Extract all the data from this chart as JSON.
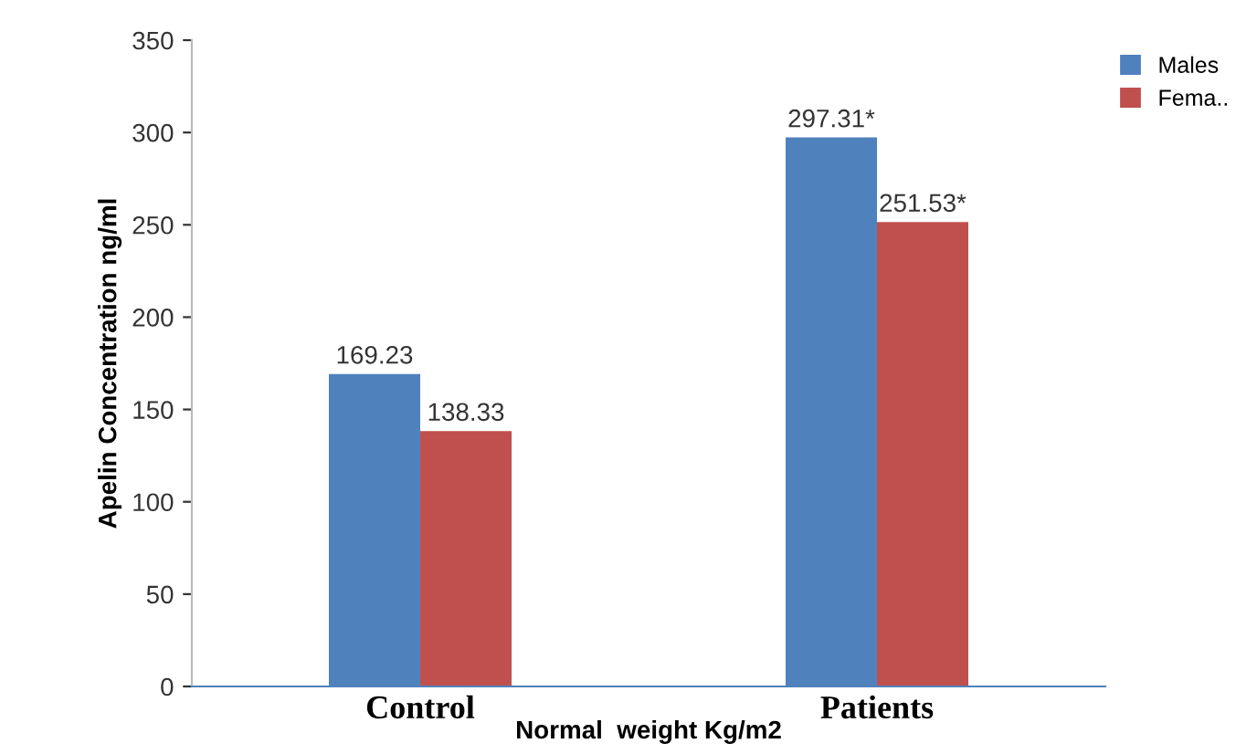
{
  "chart_data": {
    "type": "bar",
    "xlabel": "Normal  weight Kg/m2",
    "ylabel": "Apelin Concentration ng/ml",
    "categories": [
      "Control",
      "Patients"
    ],
    "series": [
      {
        "name": "Males",
        "color": "#4f81bd",
        "values": [
          169.23,
          297.31
        ],
        "value_labels": [
          "169.23",
          "297.31*"
        ]
      },
      {
        "name": "Fema..",
        "color": "#c0504d",
        "values": [
          138.33,
          251.53
        ],
        "value_labels": [
          "138.33",
          "251.53*"
        ]
      }
    ],
    "ylim": [
      0,
      350
    ],
    "yticks": [
      0,
      50,
      100,
      150,
      200,
      250,
      300,
      350
    ],
    "grid": false,
    "legend": "top right"
  }
}
